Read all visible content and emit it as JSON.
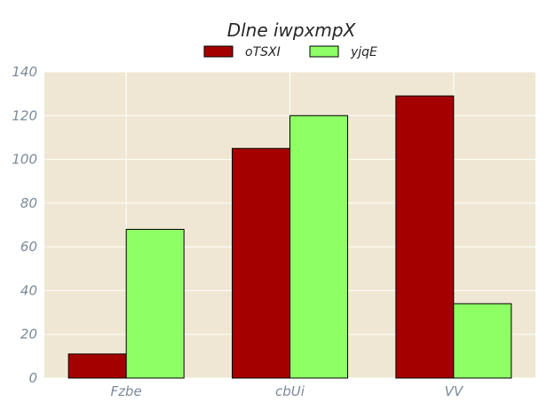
{
  "chart_data": {
    "type": "bar",
    "title": "Dlne iwpxmpX",
    "categories": [
      "Fzbe",
      "cbUi",
      "VV"
    ],
    "series": [
      {
        "name": "oTSXI",
        "values": [
          11,
          105,
          129
        ],
        "color": "#a50000"
      },
      {
        "name": "yjqE",
        "values": [
          68,
          120,
          34
        ],
        "color": "#8fff66"
      }
    ],
    "ylim": [
      0,
      140
    ],
    "yticks": [
      0,
      20,
      40,
      60,
      80,
      100,
      120,
      140
    ],
    "grid": true,
    "legend": "top-center",
    "plot_background": "#efe7d3",
    "grid_color": "#ffffff",
    "bar_edge_color": "#000000"
  }
}
